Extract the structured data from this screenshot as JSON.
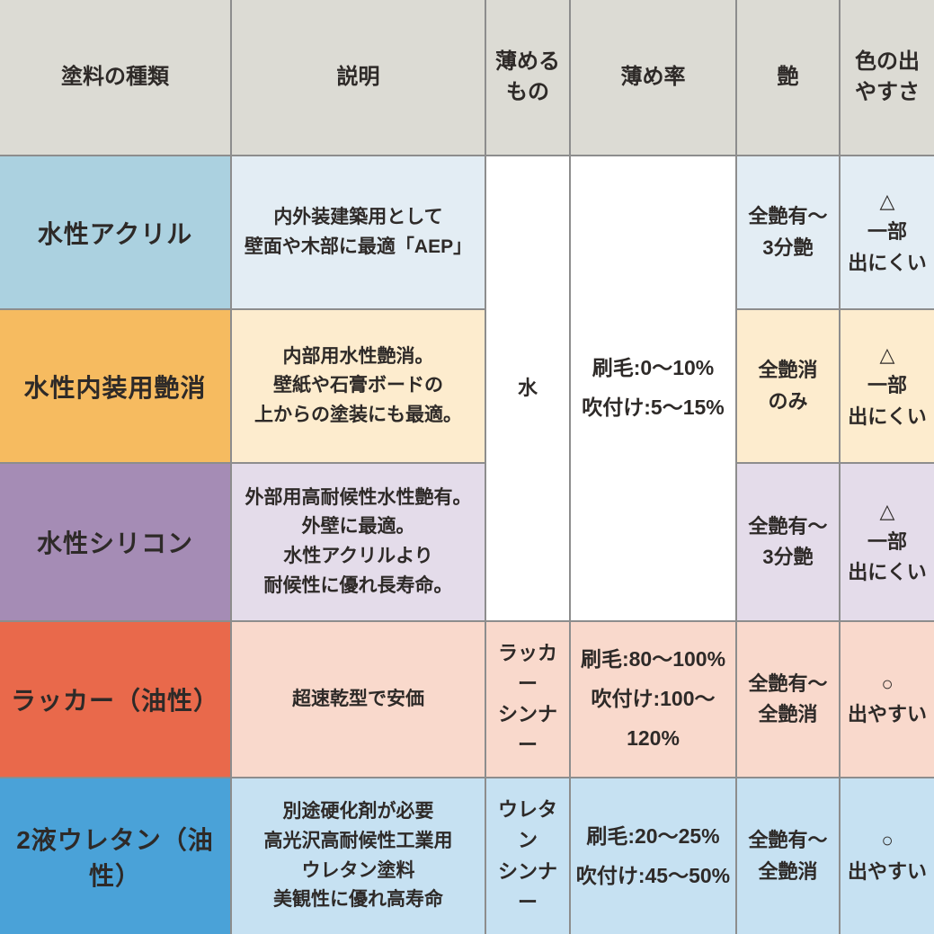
{
  "colors": {
    "header_bg": "#dcdbd4",
    "border": "#8d8d8d",
    "text": "#2e2a28",
    "merged_bg": "#ffffff"
  },
  "table": {
    "headers": {
      "type": "塗料の種類",
      "description": "説明",
      "thinner": "薄める\nもの",
      "rate": "薄め率",
      "gloss": "艶",
      "color_ease": "色の出\nやすさ"
    },
    "merged_water_group": {
      "thinner": "水",
      "rate": "刷毛:0～10%\n吹付け:5～15%"
    },
    "rows": [
      {
        "name": "水性アクリル",
        "description": "内外装建築用として\n壁面や木部に最適「AEP」",
        "gloss": "全艶有～\n3分艶",
        "color_ease": "△\n一部\n出にくい",
        "name_bg": "#abd1e0",
        "light_bg": "#e3edf4"
      },
      {
        "name": "水性内装用艶消",
        "description": "内部用水性艶消。\n壁紙や石膏ボードの\n上からの塗装にも最適。",
        "gloss": "全艶消\nのみ",
        "color_ease": "△\n一部\n出にくい",
        "name_bg": "#f6bb60",
        "light_bg": "#fdecce"
      },
      {
        "name": "水性シリコン",
        "description": "外部用高耐候性水性艶有。\n外壁に最適。\n水性アクリルより\n耐候性に優れ長寿命。",
        "gloss": "全艶有～\n3分艶",
        "color_ease": "△\n一部\n出にくい",
        "name_bg": "#a58cb5",
        "light_bg": "#e4dcea"
      },
      {
        "name": "ラッカー（油性）",
        "description": "超速乾型で安価",
        "thinner": "ラッカー\nシンナー",
        "rate": "刷毛:80～100%\n吹付け:100～120%",
        "gloss": "全艶有～\n全艶消",
        "color_ease": "○\n出やすい",
        "name_bg": "#e9694b",
        "light_bg": "#f9d9cc"
      },
      {
        "name": "2液ウレタン（油性）",
        "description": "別途硬化剤が必要\n高光沢高耐候性工業用\nウレタン塗料\n美観性に優れ高寿命",
        "thinner": "ウレタン\nシンナー",
        "rate": "刷毛:20～25%\n吹付け:45～50%",
        "gloss": "全艶有～\n全艶消",
        "color_ease": "○\n出やすい",
        "name_bg": "#4aa2d8",
        "light_bg": "#c6e1f2"
      }
    ]
  },
  "chart_data": {
    "type": "table",
    "columns": [
      "塗料の種類",
      "説明",
      "薄めるもの",
      "薄め率",
      "艶",
      "色の出やすさ"
    ],
    "rows": [
      [
        "水性アクリル",
        "内外装建築用として壁面や木部に最適「AEP」",
        "水",
        "刷毛:0～10% 吹付け:5～15%",
        "全艶有～3分艶",
        "△ 一部出にくい"
      ],
      [
        "水性内装用艶消",
        "内部用水性艶消。壁紙や石膏ボードの上からの塗装にも最適。",
        "水",
        "刷毛:0～10% 吹付け:5～15%",
        "全艶消のみ",
        "△ 一部出にくい"
      ],
      [
        "水性シリコン",
        "外部用高耐候性水性艶有。外壁に最適。水性アクリルより耐候性に優れ長寿命。",
        "水",
        "刷毛:0～10% 吹付け:5～15%",
        "全艶有～3分艶",
        "△ 一部出にくい"
      ],
      [
        "ラッカー（油性）",
        "超速乾型で安価",
        "ラッカーシンナー",
        "刷毛:80～100% 吹付け:100～120%",
        "全艶有～全艶消",
        "○ 出やすい"
      ],
      [
        "2液ウレタン（油性）",
        "別途硬化剤が必要 高光沢高耐候性工業用ウレタン塗料 美観性に優れ高寿命",
        "ウレタンシンナー",
        "刷毛:20～25% 吹付け:45～50%",
        "全艶有～全艶消",
        "○ 出やすい"
      ]
    ],
    "layout_hints": {
      "merged_cells": "薄めるもの and 薄め率 are merged across the three water-based rows",
      "grid": "on"
    }
  }
}
